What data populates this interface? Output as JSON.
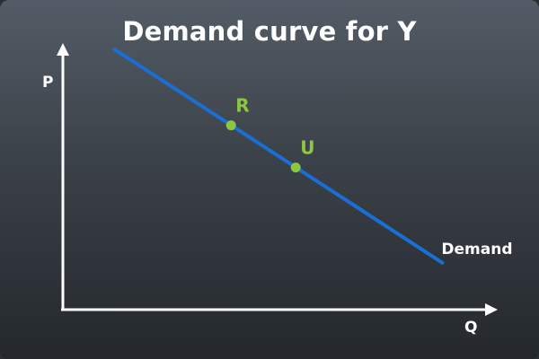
{
  "chart_data": {
    "type": "line",
    "title": "Demand curve for Y",
    "xlabel": "Q",
    "ylabel": "P",
    "xlim": [
      0,
      10
    ],
    "ylim": [
      0,
      10
    ],
    "grid": false,
    "colors": {
      "curve": "#1a6fd6",
      "points": "#8dc63f",
      "axes": "#ffffff"
    },
    "series": [
      {
        "name": "Demand",
        "x": [
          1.2,
          8.8
        ],
        "y": [
          10,
          1.8
        ]
      }
    ],
    "points": [
      {
        "label": "R",
        "x": 3.9,
        "y": 7.08
      },
      {
        "label": "U",
        "x": 5.4,
        "y": 5.46
      }
    ]
  }
}
